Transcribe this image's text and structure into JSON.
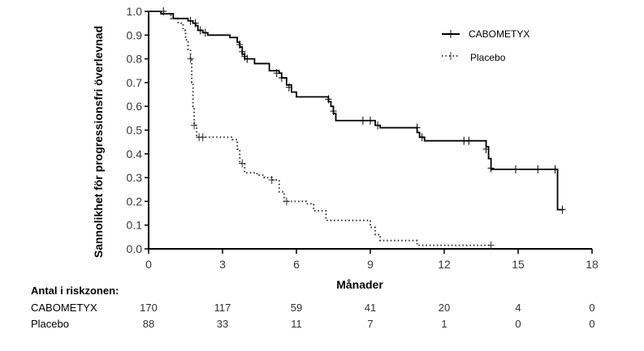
{
  "chart_data": {
    "type": "line",
    "subtype": "kaplan-meier",
    "title": "",
    "xlabel": "Månader",
    "ylabel": "Sannolikhet för progressionsfri överlevnad",
    "xlim": [
      0,
      18
    ],
    "ylim": [
      0,
      1.0
    ],
    "xticks": [
      "0",
      "3",
      "6",
      "9",
      "12",
      "15",
      "18"
    ],
    "yticks": [
      "0.0",
      "0.1",
      "0.2",
      "0.3",
      "0.4",
      "0.5",
      "0.6",
      "0.7",
      "0.8",
      "0.9",
      "1.0"
    ],
    "grid": false,
    "legend_position": "top-right",
    "series": [
      {
        "name": "CABOMETYX",
        "style": "solid",
        "color": "#000000",
        "steps": [
          [
            0,
            1.0
          ],
          [
            0.5,
            0.99
          ],
          [
            1.0,
            0.97
          ],
          [
            1.6,
            0.96
          ],
          [
            1.8,
            0.95
          ],
          [
            1.9,
            0.94
          ],
          [
            2.0,
            0.92
          ],
          [
            2.2,
            0.91
          ],
          [
            2.4,
            0.9
          ],
          [
            3.3,
            0.89
          ],
          [
            3.6,
            0.87
          ],
          [
            3.7,
            0.85
          ],
          [
            3.8,
            0.82
          ],
          [
            3.9,
            0.8
          ],
          [
            4.3,
            0.78
          ],
          [
            4.9,
            0.75
          ],
          [
            5.3,
            0.74
          ],
          [
            5.4,
            0.72
          ],
          [
            5.6,
            0.69
          ],
          [
            5.8,
            0.66
          ],
          [
            6.0,
            0.64
          ],
          [
            7.3,
            0.62
          ],
          [
            7.4,
            0.6
          ],
          [
            7.5,
            0.57
          ],
          [
            7.6,
            0.54
          ],
          [
            9.2,
            0.52
          ],
          [
            9.4,
            0.51
          ],
          [
            10.9,
            0.49
          ],
          [
            11.0,
            0.47
          ],
          [
            11.2,
            0.455
          ],
          [
            13.7,
            0.43
          ],
          [
            13.8,
            0.38
          ],
          [
            13.9,
            0.335
          ],
          [
            16.6,
            0.165
          ],
          [
            16.8,
            0.165
          ]
        ],
        "censored": [
          [
            0.6,
            1.0
          ],
          [
            1.7,
            0.96
          ],
          [
            1.9,
            0.95
          ],
          [
            2.1,
            0.92
          ],
          [
            2.3,
            0.91
          ],
          [
            3.7,
            0.86
          ],
          [
            3.8,
            0.83
          ],
          [
            3.9,
            0.81
          ],
          [
            4.0,
            0.8
          ],
          [
            5.2,
            0.74
          ],
          [
            5.4,
            0.72
          ],
          [
            5.7,
            0.68
          ],
          [
            7.3,
            0.63
          ],
          [
            7.5,
            0.58
          ],
          [
            8.7,
            0.54
          ],
          [
            9.0,
            0.54
          ],
          [
            9.3,
            0.52
          ],
          [
            10.9,
            0.51
          ],
          [
            11.1,
            0.47
          ],
          [
            12.8,
            0.455
          ],
          [
            13.0,
            0.455
          ],
          [
            13.7,
            0.42
          ],
          [
            13.9,
            0.34
          ],
          [
            14.9,
            0.335
          ],
          [
            15.8,
            0.335
          ],
          [
            16.5,
            0.335
          ],
          [
            16.8,
            0.165
          ]
        ]
      },
      {
        "name": "Placebo",
        "style": "dotted",
        "color": "#333333",
        "steps": [
          [
            0,
            1.0
          ],
          [
            0.6,
            0.99
          ],
          [
            0.9,
            0.97
          ],
          [
            1.2,
            0.95
          ],
          [
            1.4,
            0.92
          ],
          [
            1.5,
            0.88
          ],
          [
            1.6,
            0.84
          ],
          [
            1.7,
            0.8
          ],
          [
            1.75,
            0.7
          ],
          [
            1.8,
            0.6
          ],
          [
            1.85,
            0.52
          ],
          [
            1.95,
            0.47
          ],
          [
            3.4,
            0.46
          ],
          [
            3.6,
            0.42
          ],
          [
            3.7,
            0.36
          ],
          [
            3.9,
            0.32
          ],
          [
            4.4,
            0.31
          ],
          [
            4.7,
            0.3
          ],
          [
            5.0,
            0.29
          ],
          [
            5.3,
            0.24
          ],
          [
            5.5,
            0.2
          ],
          [
            6.4,
            0.19
          ],
          [
            6.7,
            0.16
          ],
          [
            7.2,
            0.12
          ],
          [
            9.0,
            0.09
          ],
          [
            9.2,
            0.06
          ],
          [
            9.4,
            0.035
          ],
          [
            10.9,
            0.015
          ],
          [
            13.9,
            0.015
          ]
        ],
        "censored": [
          [
            1.7,
            0.8
          ],
          [
            1.85,
            0.52
          ],
          [
            2.05,
            0.47
          ],
          [
            2.2,
            0.47
          ],
          [
            3.8,
            0.36
          ],
          [
            5.0,
            0.29
          ],
          [
            5.6,
            0.2
          ],
          [
            13.9,
            0.015
          ]
        ]
      }
    ],
    "risk_table": {
      "title": "Antal i riskzonen:",
      "timepoints": [
        0,
        3,
        6,
        9,
        12,
        15,
        18
      ],
      "rows": [
        {
          "label": "CABOMETYX",
          "values": [
            "170",
            "117",
            "59",
            "41",
            "20",
            "4",
            "0"
          ]
        },
        {
          "label": "Placebo",
          "values": [
            "88",
            "33",
            "11",
            "7",
            "1",
            "0",
            "0"
          ]
        }
      ]
    }
  }
}
